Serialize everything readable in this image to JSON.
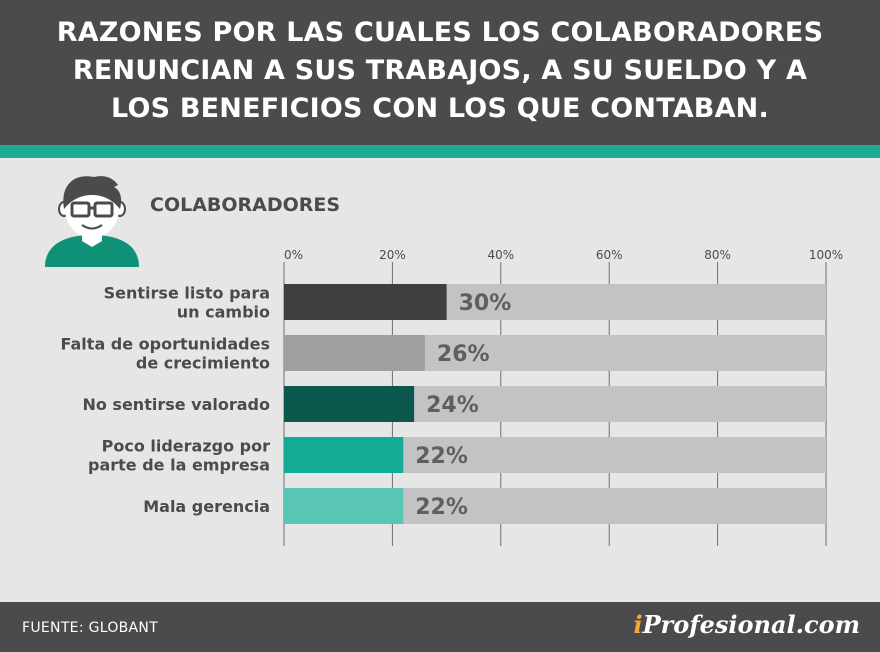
{
  "header": {
    "title_lines": [
      "RAZONES POR LAS CUALES LOS COLABORADORES",
      "RENUNCIAN A SUS TRABAJOS, A SU SUELDO Y A",
      "LOS BENEFICIOS CON LOS QUE CONTABAN."
    ]
  },
  "section": {
    "label": "COLABORADORES",
    "icon": "user-avatar-icon"
  },
  "colors": {
    "header_bg": "#4b4b4d",
    "accent_strip": "#1bac97",
    "page_bg": "#e6e6e6",
    "track": "#c3c3c5",
    "axis_text": "#4b4b4d",
    "value_text": "#5f5f61",
    "brand_i": "#f3a63c"
  },
  "chart_data": {
    "type": "bar",
    "orientation": "horizontal",
    "categories": [
      [
        "Sentirse listo para",
        "un cambio"
      ],
      [
        "Falta de oportunidades",
        "de crecimiento"
      ],
      [
        "No sentirse valorado"
      ],
      [
        "Poco liderazgo por",
        "parte de la empresa"
      ],
      [
        "Mala gerencia"
      ]
    ],
    "values": [
      30,
      26,
      24,
      22,
      22
    ],
    "value_labels": [
      "30%",
      "26%",
      "24%",
      "22%",
      "22%"
    ],
    "bar_colors": [
      "#3f3f41",
      "#a19f9d",
      "#0c584e",
      "#14ab94",
      "#58c5b5"
    ],
    "xlim": [
      0,
      100
    ],
    "ticks": [
      0,
      20,
      40,
      60,
      80,
      100
    ],
    "tick_labels": [
      "0%",
      "20%",
      "40%",
      "60%",
      "80%",
      "100%"
    ],
    "grid": true
  },
  "footer": {
    "source": "FUENTE: GLOBANT",
    "brand_i": "i",
    "brand_rest": "Profesional.com"
  }
}
